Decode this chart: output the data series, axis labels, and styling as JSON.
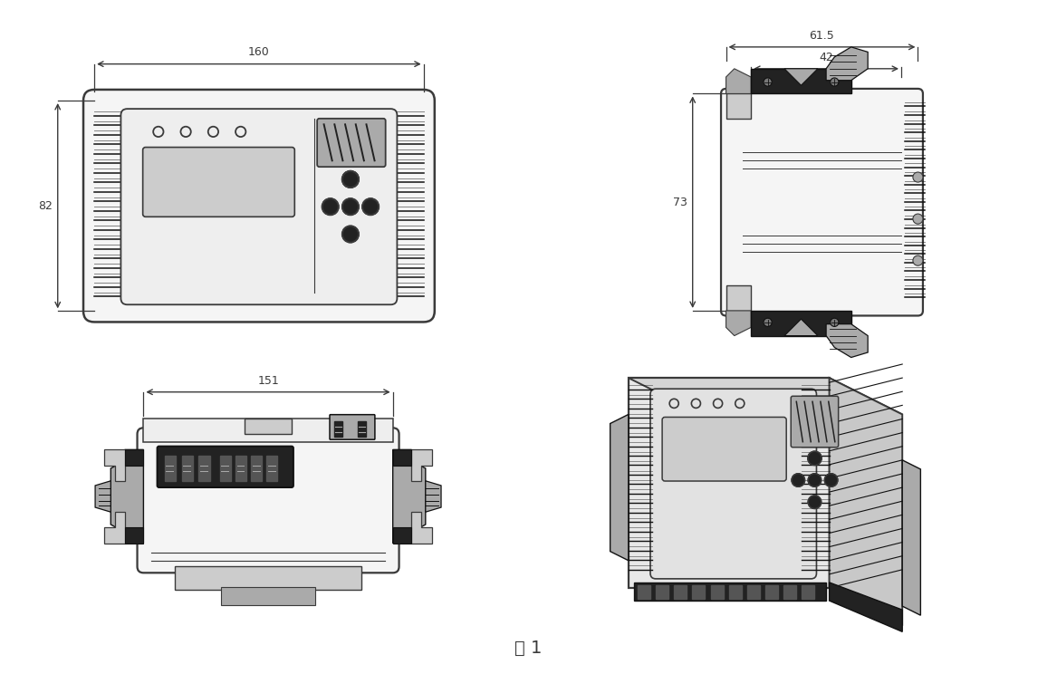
{
  "bg": "#ffffff",
  "lc": "#3a3a3a",
  "dc": "#111111",
  "body": "#f5f5f5",
  "inner": "#eeeeee",
  "dark": "#222222",
  "gray1": "#777777",
  "gray2": "#aaaaaa",
  "gray3": "#cccccc",
  "caption": "图 1",
  "caption_fs": 14,
  "d160": "160",
  "d82": "82",
  "d615": "61.5",
  "d42": "42",
  "d73": "73",
  "d151": "151"
}
